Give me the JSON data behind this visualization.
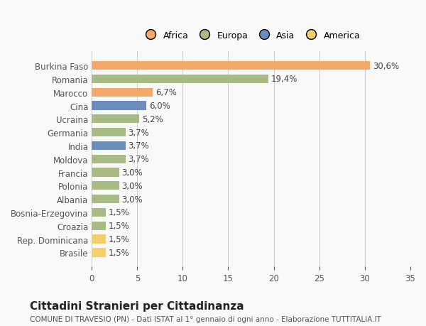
{
  "countries": [
    "Burkina Faso",
    "Romania",
    "Marocco",
    "Cina",
    "Ucraina",
    "Germania",
    "India",
    "Moldova",
    "Francia",
    "Polonia",
    "Albania",
    "Bosnia-Erzegovina",
    "Croazia",
    "Rep. Dominicana",
    "Brasile"
  ],
  "values": [
    30.6,
    19.4,
    6.7,
    6.0,
    5.2,
    3.7,
    3.7,
    3.7,
    3.0,
    3.0,
    3.0,
    1.5,
    1.5,
    1.5,
    1.5
  ],
  "labels": [
    "30,6%",
    "19,4%",
    "6,7%",
    "6,0%",
    "5,2%",
    "3,7%",
    "3,7%",
    "3,7%",
    "3,0%",
    "3,0%",
    "3,0%",
    "1,5%",
    "1,5%",
    "1,5%",
    "1,5%"
  ],
  "continents": [
    "Africa",
    "Europa",
    "Africa",
    "Asia",
    "Europa",
    "Europa",
    "Asia",
    "Europa",
    "Europa",
    "Europa",
    "Europa",
    "Europa",
    "Europa",
    "America",
    "America"
  ],
  "colors": {
    "Africa": "#F4A96A",
    "Europa": "#A8BB85",
    "Asia": "#6B8DBD",
    "America": "#F5CE6E"
  },
  "legend_order": [
    "Africa",
    "Europa",
    "Asia",
    "America"
  ],
  "legend_colors": [
    "#F4A96A",
    "#A8BB85",
    "#6B8DBD",
    "#F5CE6E"
  ],
  "title": "Cittadini Stranieri per Cittadinanza",
  "subtitle": "COMUNE DI TRAVESIO (PN) - Dati ISTAT al 1° gennaio di ogni anno - Elaborazione TUTTITALIA.IT",
  "xlim": [
    0,
    35
  ],
  "xticks": [
    0,
    5,
    10,
    15,
    20,
    25,
    30,
    35
  ],
  "background_color": "#f9f9f9",
  "grid_color": "#cccccc",
  "bar_height": 0.65,
  "label_fontsize": 8.5,
  "tick_fontsize": 8.5,
  "title_fontsize": 11,
  "subtitle_fontsize": 7.5
}
